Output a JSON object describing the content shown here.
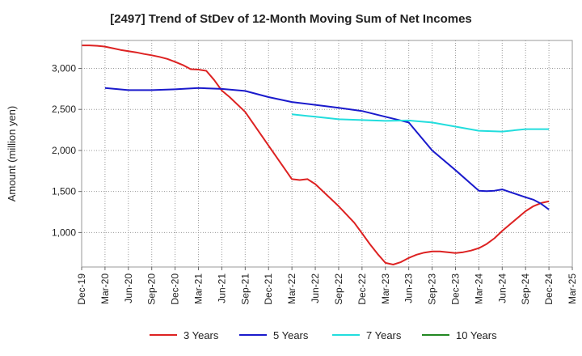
{
  "chart_data": {
    "type": "line",
    "title": "[2497]  Trend of StDev of 12-Month Moving Sum of Net Incomes",
    "xlabel": "",
    "ylabel": "Amount (million yen)",
    "ylim": [
      580,
      3340
    ],
    "yticks": [
      1000,
      1500,
      2000,
      2500,
      3000
    ],
    "ytick_labels": [
      "1,000",
      "1,500",
      "2,000",
      "2,500",
      "3,000"
    ],
    "grid": true,
    "legend_position": "bottom",
    "x_tick_labels": [
      "Dec-19",
      "Mar-20",
      "Jun-20",
      "Sep-20",
      "Dec-20",
      "Mar-21",
      "Jun-21",
      "Sep-21",
      "Dec-21",
      "Mar-22",
      "Jun-22",
      "Sep-22",
      "Dec-22",
      "Mar-23",
      "Jun-23",
      "Sep-23",
      "Dec-23",
      "Mar-24",
      "Jun-24",
      "Sep-24",
      "Dec-24",
      "Mar-25"
    ],
    "series": [
      {
        "name": "3 Years",
        "color": "#dd2222",
        "x": [
          "2019-12",
          "2020-01",
          "2020-02",
          "2020-03",
          "2020-04",
          "2020-05",
          "2020-06",
          "2020-07",
          "2020-08",
          "2020-09",
          "2020-10",
          "2020-11",
          "2020-12",
          "2021-01",
          "2021-02",
          "2021-03",
          "2021-04",
          "2021-05",
          "2021-06",
          "2021-07",
          "2021-09",
          "2021-12",
          "2022-03",
          "2022-04",
          "2022-05",
          "2022-06",
          "2022-09",
          "2022-11",
          "2022-12",
          "2023-01",
          "2023-02",
          "2023-03",
          "2023-04",
          "2023-05",
          "2023-06",
          "2023-07",
          "2023-08",
          "2023-09",
          "2023-10",
          "2023-11",
          "2023-12",
          "2024-01",
          "2024-02",
          "2024-03",
          "2024-04",
          "2024-05",
          "2024-06",
          "2024-09",
          "2024-10",
          "2024-11",
          "2024-12"
        ],
        "values": [
          3280,
          3280,
          3275,
          3265,
          3245,
          3225,
          3210,
          3195,
          3175,
          3160,
          3140,
          3115,
          3080,
          3040,
          2990,
          2985,
          2970,
          2860,
          2730,
          2650,
          2470,
          2060,
          1650,
          1640,
          1650,
          1590,
          1320,
          1120,
          990,
          860,
          740,
          630,
          610,
          640,
          690,
          730,
          755,
          770,
          770,
          760,
          750,
          760,
          780,
          810,
          860,
          930,
          1020,
          1260,
          1320,
          1360,
          1380
        ]
      },
      {
        "name": "5 Years",
        "color": "#1a1acc",
        "x": [
          "2020-03",
          "2020-06",
          "2020-09",
          "2020-12",
          "2021-03",
          "2021-06",
          "2021-09",
          "2021-12",
          "2022-03",
          "2022-06",
          "2022-09",
          "2022-12",
          "2023-03",
          "2023-06",
          "2023-09",
          "2023-12",
          "2024-03",
          "2024-04",
          "2024-05",
          "2024-06",
          "2024-09",
          "2024-10",
          "2024-11",
          "2024-12"
        ],
        "values": [
          2760,
          2735,
          2735,
          2745,
          2760,
          2750,
          2725,
          2650,
          2590,
          2555,
          2520,
          2480,
          2410,
          2340,
          2000,
          1760,
          1510,
          1505,
          1510,
          1525,
          1430,
          1400,
          1350,
          1280
        ]
      },
      {
        "name": "7 Years",
        "color": "#22dddd",
        "x": [
          "2022-03",
          "2022-06",
          "2022-09",
          "2022-12",
          "2023-03",
          "2023-06",
          "2023-09",
          "2023-12",
          "2024-03",
          "2024-06",
          "2024-09",
          "2024-12"
        ],
        "values": [
          2440,
          2410,
          2380,
          2370,
          2360,
          2365,
          2340,
          2290,
          2240,
          2230,
          2260,
          2260
        ]
      },
      {
        "name": "10 Years",
        "color": "#228822",
        "x": [],
        "values": []
      }
    ]
  }
}
